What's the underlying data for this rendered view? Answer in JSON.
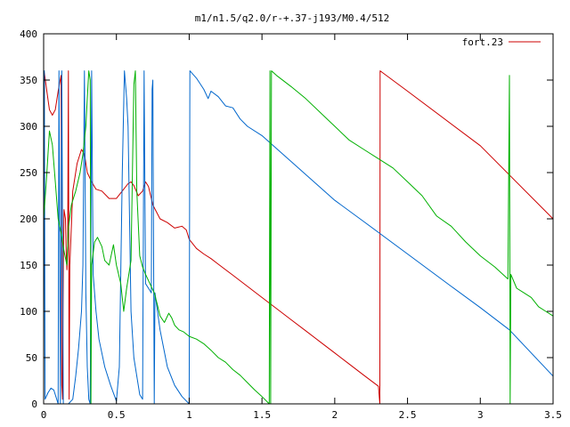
{
  "chart_data": {
    "type": "line",
    "title": "m1/n1.5/q2.0/r-+.37-j193/M0.4/512",
    "xlabel": "",
    "ylabel": "",
    "xlim": [
      0,
      3.5
    ],
    "ylim": [
      0,
      400
    ],
    "x_ticks": [
      0,
      0.5,
      1,
      1.5,
      2,
      2.5,
      3,
      3.5
    ],
    "x_tick_labels": [
      "0",
      "0.5",
      "1",
      "1.5",
      "2",
      "2.5",
      "3",
      "3.5"
    ],
    "y_ticks": [
      0,
      50,
      100,
      150,
      200,
      250,
      300,
      350,
      400
    ],
    "y_tick_labels": [
      "0",
      "50",
      "100",
      "150",
      "200",
      "250",
      "300",
      "350",
      "400"
    ],
    "grid": false,
    "legend": {
      "placement": "top-right",
      "entries": [
        {
          "label": "fort.23",
          "color": "#cc0000"
        }
      ]
    },
    "series": [
      {
        "color": "#cc0000",
        "points": [
          [
            0.0,
            180
          ],
          [
            0.005,
            358
          ],
          [
            0.02,
            340
          ],
          [
            0.04,
            318
          ],
          [
            0.06,
            312
          ],
          [
            0.08,
            318
          ],
          [
            0.1,
            338
          ],
          [
            0.12,
            355
          ],
          [
            0.125,
            20
          ],
          [
            0.13,
            5
          ],
          [
            0.135,
            150
          ],
          [
            0.14,
            210
          ],
          [
            0.15,
            200
          ],
          [
            0.155,
            165
          ],
          [
            0.16,
            145
          ],
          [
            0.165,
            170
          ],
          [
            0.17,
            360
          ],
          [
            0.175,
            5
          ],
          [
            0.18,
            150
          ],
          [
            0.2,
            230
          ],
          [
            0.23,
            260
          ],
          [
            0.26,
            275
          ],
          [
            0.28,
            270
          ],
          [
            0.3,
            250
          ],
          [
            0.33,
            240
          ],
          [
            0.36,
            232
          ],
          [
            0.4,
            230
          ],
          [
            0.45,
            222
          ],
          [
            0.5,
            222
          ],
          [
            0.55,
            232
          ],
          [
            0.58,
            238
          ],
          [
            0.6,
            240
          ],
          [
            0.62,
            236
          ],
          [
            0.65,
            225
          ],
          [
            0.68,
            230
          ],
          [
            0.7,
            240
          ],
          [
            0.72,
            235
          ],
          [
            0.75,
            215
          ],
          [
            0.8,
            200
          ],
          [
            0.85,
            196
          ],
          [
            0.9,
            190
          ],
          [
            0.95,
            192
          ],
          [
            0.98,
            188
          ],
          [
            1.0,
            178
          ],
          [
            1.05,
            168
          ],
          [
            1.1,
            162
          ],
          [
            1.15,
            157
          ],
          [
            1.2,
            151
          ],
          [
            1.3,
            139
          ],
          [
            1.4,
            127
          ],
          [
            1.5,
            115
          ],
          [
            1.6,
            103
          ],
          [
            1.7,
            91
          ],
          [
            1.8,
            79
          ],
          [
            1.9,
            67
          ],
          [
            2.0,
            55
          ],
          [
            2.1,
            43
          ],
          [
            2.2,
            31
          ],
          [
            2.3,
            19
          ],
          [
            2.31,
            0
          ],
          [
            2.312,
            360
          ],
          [
            2.5,
            338
          ],
          [
            3.0,
            279
          ],
          [
            3.5,
            200
          ]
        ]
      },
      {
        "color": "#0066cc",
        "points": [
          [
            0.0,
            0
          ],
          [
            0.005,
            360
          ],
          [
            0.01,
            5
          ],
          [
            0.03,
            12
          ],
          [
            0.05,
            17
          ],
          [
            0.07,
            15
          ],
          [
            0.09,
            5
          ],
          [
            0.1,
            0
          ],
          [
            0.105,
            360
          ],
          [
            0.115,
            0
          ],
          [
            0.125,
            360
          ],
          [
            0.135,
            0
          ],
          [
            0.17,
            0
          ],
          [
            0.2,
            5
          ],
          [
            0.22,
            30
          ],
          [
            0.24,
            60
          ],
          [
            0.26,
            100
          ],
          [
            0.27,
            150
          ],
          [
            0.28,
            360
          ],
          [
            0.29,
            120
          ],
          [
            0.3,
            40
          ],
          [
            0.31,
            5
          ],
          [
            0.32,
            0
          ],
          [
            0.33,
            360
          ],
          [
            0.34,
            140
          ],
          [
            0.36,
            100
          ],
          [
            0.38,
            70
          ],
          [
            0.42,
            40
          ],
          [
            0.46,
            20
          ],
          [
            0.5,
            3
          ],
          [
            0.52,
            40
          ],
          [
            0.54,
            250
          ],
          [
            0.555,
            360
          ],
          [
            0.57,
            330
          ],
          [
            0.58,
            300
          ],
          [
            0.6,
            100
          ],
          [
            0.62,
            50
          ],
          [
            0.64,
            30
          ],
          [
            0.66,
            10
          ],
          [
            0.68,
            5
          ],
          [
            0.69,
            360
          ],
          [
            0.7,
            130
          ],
          [
            0.72,
            125
          ],
          [
            0.74,
            120
          ],
          [
            0.745,
            340
          ],
          [
            0.75,
            350
          ],
          [
            0.76,
            0
          ],
          [
            0.765,
            120
          ],
          [
            0.8,
            80
          ],
          [
            0.85,
            40
          ],
          [
            0.9,
            20
          ],
          [
            0.95,
            8
          ],
          [
            1.0,
            0
          ],
          [
            1.005,
            360
          ],
          [
            1.05,
            352
          ],
          [
            1.1,
            340
          ],
          [
            1.13,
            330
          ],
          [
            1.15,
            338
          ],
          [
            1.2,
            332
          ],
          [
            1.25,
            322
          ],
          [
            1.3,
            320
          ],
          [
            1.35,
            308
          ],
          [
            1.4,
            300
          ],
          [
            1.5,
            290
          ],
          [
            1.6,
            276
          ],
          [
            1.7,
            262
          ],
          [
            1.8,
            248
          ],
          [
            1.9,
            234
          ],
          [
            2.0,
            220
          ],
          [
            2.2,
            197
          ],
          [
            2.5,
            162
          ],
          [
            2.8,
            127
          ],
          [
            3.0,
            104
          ],
          [
            3.2,
            80
          ],
          [
            3.5,
            30
          ]
        ]
      },
      {
        "color": "#00b000",
        "points": [
          [
            0.0,
            200
          ],
          [
            0.02,
            245
          ],
          [
            0.04,
            295
          ],
          [
            0.06,
            280
          ],
          [
            0.08,
            240
          ],
          [
            0.1,
            200
          ],
          [
            0.12,
            185
          ],
          [
            0.14,
            165
          ],
          [
            0.16,
            150
          ],
          [
            0.17,
            190
          ],
          [
            0.19,
            215
          ],
          [
            0.22,
            230
          ],
          [
            0.25,
            250
          ],
          [
            0.27,
            270
          ],
          [
            0.29,
            300
          ],
          [
            0.3,
            330
          ],
          [
            0.31,
            360
          ],
          [
            0.32,
            350
          ],
          [
            0.325,
            0
          ],
          [
            0.33,
            150
          ],
          [
            0.35,
            175
          ],
          [
            0.37,
            180
          ],
          [
            0.4,
            170
          ],
          [
            0.42,
            155
          ],
          [
            0.45,
            150
          ],
          [
            0.48,
            172
          ],
          [
            0.5,
            150
          ],
          [
            0.53,
            130
          ],
          [
            0.55,
            100
          ],
          [
            0.57,
            125
          ],
          [
            0.6,
            155
          ],
          [
            0.62,
            345
          ],
          [
            0.63,
            360
          ],
          [
            0.64,
            230
          ],
          [
            0.66,
            160
          ],
          [
            0.68,
            148
          ],
          [
            0.7,
            140
          ],
          [
            0.73,
            130
          ],
          [
            0.76,
            120
          ],
          [
            0.78,
            108
          ],
          [
            0.8,
            95
          ],
          [
            0.83,
            88
          ],
          [
            0.86,
            98
          ],
          [
            0.88,
            93
          ],
          [
            0.9,
            85
          ],
          [
            0.93,
            80
          ],
          [
            0.96,
            78
          ],
          [
            1.0,
            73
          ],
          [
            1.05,
            70
          ],
          [
            1.1,
            65
          ],
          [
            1.15,
            58
          ],
          [
            1.2,
            50
          ],
          [
            1.25,
            45
          ],
          [
            1.3,
            37
          ],
          [
            1.35,
            31
          ],
          [
            1.4,
            23
          ],
          [
            1.45,
            15
          ],
          [
            1.5,
            8
          ],
          [
            1.55,
            0
          ],
          [
            1.555,
            360
          ],
          [
            1.56,
            0
          ],
          [
            1.565,
            360
          ],
          [
            1.6,
            355
          ],
          [
            1.7,
            343
          ],
          [
            1.8,
            330
          ],
          [
            1.9,
            315
          ],
          [
            2.0,
            300
          ],
          [
            2.1,
            285
          ],
          [
            2.2,
            275
          ],
          [
            2.3,
            265
          ],
          [
            2.4,
            255
          ],
          [
            2.5,
            240
          ],
          [
            2.6,
            225
          ],
          [
            2.7,
            203
          ],
          [
            2.8,
            192
          ],
          [
            2.9,
            175
          ],
          [
            3.0,
            160
          ],
          [
            3.1,
            148
          ],
          [
            3.19,
            135
          ],
          [
            3.2,
            355
          ],
          [
            3.205,
            0
          ],
          [
            3.21,
            140
          ],
          [
            3.25,
            125
          ],
          [
            3.3,
            120
          ],
          [
            3.35,
            115
          ],
          [
            3.4,
            105
          ],
          [
            3.45,
            100
          ],
          [
            3.5,
            95
          ]
        ]
      }
    ]
  }
}
